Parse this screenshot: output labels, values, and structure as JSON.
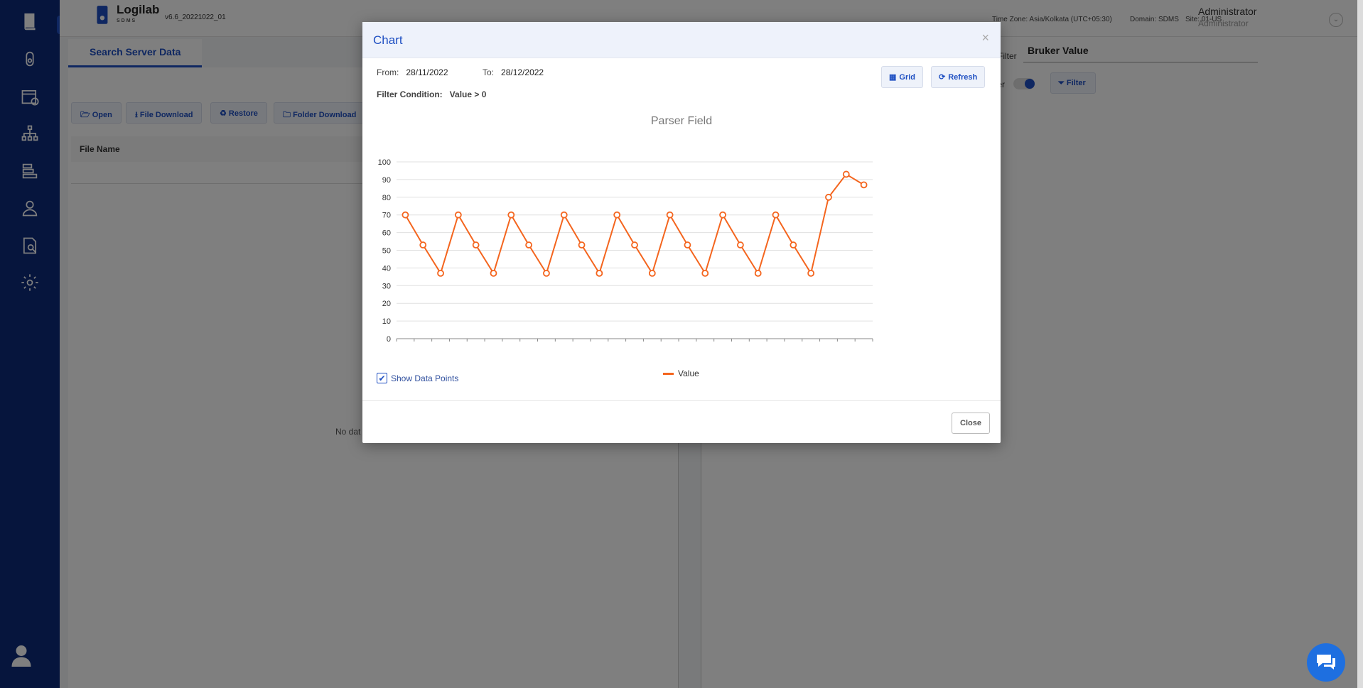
{
  "header": {
    "logo_name": "Logilab",
    "logo_sub": "SDMS",
    "version": "v6.6_20221022_01",
    "timezone": "Time Zone: Asia/Kolkata (UTC+05:30)",
    "domain": "Domain: SDMS",
    "site": "Site: 01-US",
    "user_name": "Administrator",
    "user_role": "Administrator"
  },
  "page": {
    "tab": "Search Server Data",
    "toolbar": {
      "open": "Open",
      "file_download": "File Download",
      "restore": "Restore",
      "folder_download": "Folder Download"
    },
    "file_name_header": "File Name",
    "no_data": "No dat",
    "filter_label": "Filter",
    "filter_select": "Bruker Value",
    "filter_toggle_label": "ter",
    "filter_button": "Filter"
  },
  "modal": {
    "title": "Chart",
    "from_label": "From:",
    "from_value": "28/11/2022",
    "to_label": "To:",
    "to_value": "28/12/2022",
    "filter_condition_label": "Filter Condition:",
    "filter_condition_value": "Value > 0",
    "grid_button": "Grid",
    "refresh_button": "Refresh",
    "show_data_points": "Show Data Points",
    "close_button": "Close",
    "accent_color": "#f4651e"
  },
  "chart_data": {
    "type": "line",
    "title": "Parser Field",
    "xlabel": "",
    "ylabel": "",
    "ylim": [
      0,
      100
    ],
    "yticks": [
      0,
      10,
      20,
      30,
      40,
      50,
      60,
      70,
      80,
      90,
      100
    ],
    "series": [
      {
        "name": "Value",
        "color": "#f4651e",
        "values": [
          70,
          53,
          37,
          70,
          53,
          37,
          70,
          53,
          37,
          70,
          53,
          37,
          70,
          53,
          37,
          70,
          53,
          37,
          70,
          53,
          37,
          70,
          53,
          37,
          80,
          93,
          87
        ]
      }
    ]
  }
}
